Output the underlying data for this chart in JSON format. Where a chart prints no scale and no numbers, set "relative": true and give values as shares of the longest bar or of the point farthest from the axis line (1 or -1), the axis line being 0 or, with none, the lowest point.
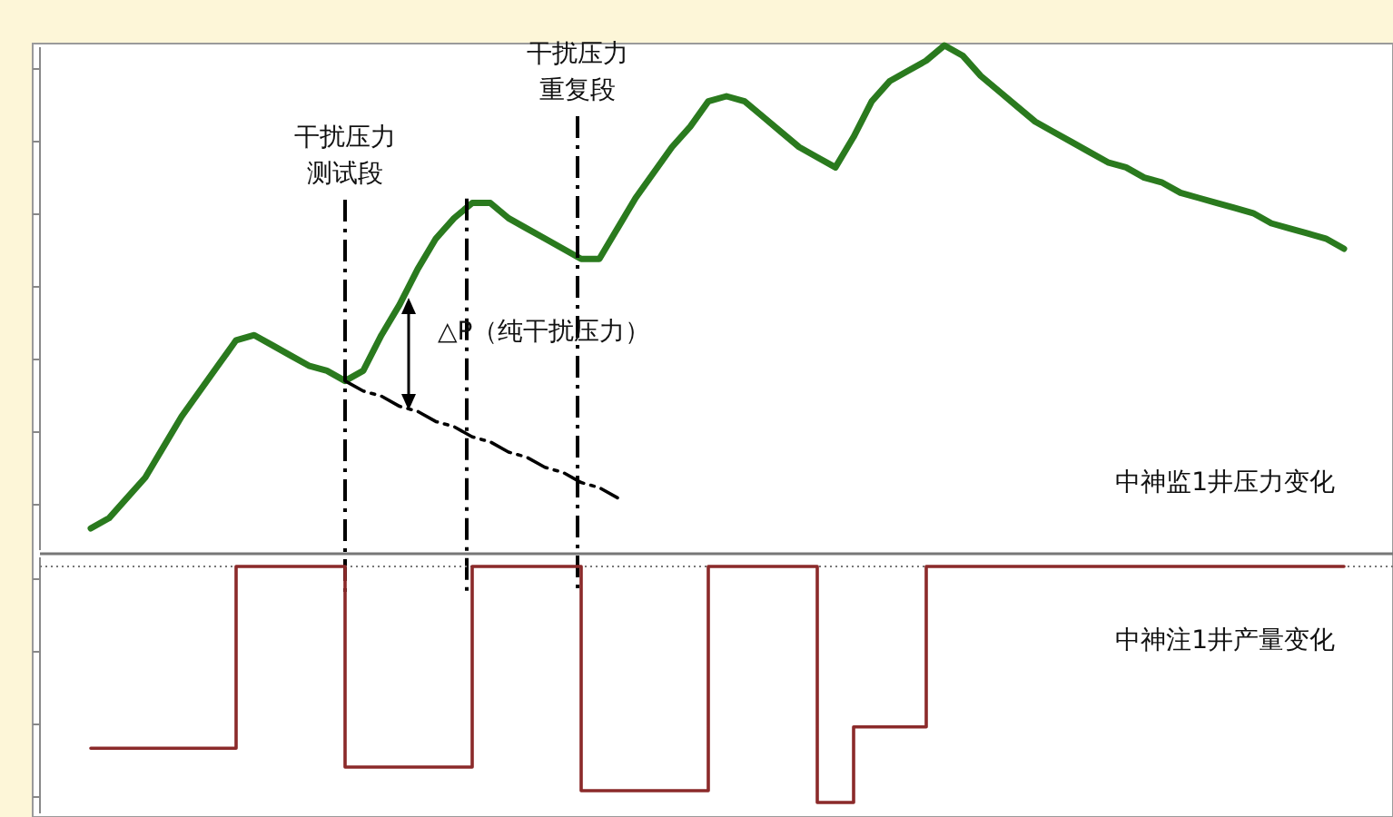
{
  "chart_data": [
    {
      "type": "line",
      "relative": true,
      "categories": [
        null,
        null,
        null,
        null,
        null,
        null,
        null,
        null,
        null,
        null,
        null,
        null,
        null,
        null,
        null,
        null,
        null,
        null,
        null,
        null,
        null,
        null,
        null,
        null,
        null,
        null,
        null,
        null,
        null,
        null,
        null,
        null,
        null,
        null,
        null,
        null,
        null,
        null,
        null,
        null,
        null,
        null,
        null,
        null,
        null,
        null,
        null,
        null,
        null,
        null,
        null,
        null,
        null,
        null,
        null,
        null,
        null,
        null,
        null,
        null,
        null,
        null,
        null,
        null,
        null,
        null,
        null,
        null,
        null,
        null
      ],
      "series": [
        {
          "color": "#2a7a1e",
          "values": [
            0.05,
            0.07,
            0.11,
            0.15,
            0.21,
            0.27,
            0.32,
            0.37,
            0.42,
            0.43,
            0.41,
            0.39,
            0.37,
            0.36,
            0.34,
            0.36,
            0.43,
            0.49,
            0.56,
            0.62,
            0.66,
            0.69,
            0.69,
            0.66,
            0.64,
            0.62,
            0.6,
            0.58,
            0.58,
            0.64,
            0.7,
            0.75,
            0.8,
            0.84,
            0.89,
            0.9,
            0.89,
            0.86,
            0.83,
            0.8,
            0.78,
            0.76,
            0.82,
            0.89,
            0.93,
            0.95,
            0.97,
            1,
            0.98,
            0.94,
            0.91,
            0.88,
            0.85,
            0.83,
            0.81,
            0.79,
            0.77,
            0.76,
            0.74,
            0.73,
            0.71,
            0.7,
            0.69,
            0.68,
            0.67,
            0.65,
            0.64,
            0.63,
            0.62,
            0.6
          ]
        },
        {
          "type": "line",
          "color": "#000000",
          "line_style": "dashed",
          "values": [
            null,
            null,
            null,
            null,
            null,
            null,
            null,
            null,
            null,
            null,
            null,
            null,
            null,
            null,
            0.34,
            0.32,
            0.31,
            0.29,
            0.28,
            0.26,
            0.25,
            0.23,
            0.22,
            0.2,
            0.19,
            0.17,
            0.16,
            0.14,
            0.13,
            0.11,
            null,
            null,
            null,
            null,
            null,
            null,
            null,
            null,
            null,
            null,
            null,
            null,
            null,
            null,
            null,
            null,
            null,
            null,
            null,
            null,
            null,
            null,
            null,
            null,
            null,
            null,
            null,
            null,
            null,
            null,
            null,
            null,
            null,
            null,
            null,
            null,
            null,
            null,
            null,
            null
          ]
        }
      ],
      "annotations": [
        "△P（纯干扰压力）",
        "干扰压力测试段",
        "干扰压力重复段",
        "中神监1井压力变化"
      ]
    },
    {
      "type": "step",
      "relative": true,
      "categories": [
        null,
        null,
        null,
        null,
        null,
        null,
        null,
        null,
        null,
        null,
        null,
        null,
        null,
        null,
        null,
        null,
        null,
        null,
        null,
        null,
        null,
        null,
        null,
        null,
        null,
        null,
        null,
        null,
        null,
        null,
        null,
        null,
        null,
        null,
        null,
        null,
        null,
        null,
        null,
        null,
        null,
        null,
        null,
        null,
        null,
        null,
        null,
        null,
        null,
        null,
        null,
        null,
        null,
        null,
        null,
        null,
        null,
        null,
        null,
        null,
        null,
        null,
        null,
        null,
        null,
        null,
        null,
        null,
        null,
        null
      ],
      "series": [
        {
          "color": "#8b2a2a",
          "values": [
            -0.77,
            -0.77,
            -0.77,
            -0.77,
            -0.77,
            -0.77,
            -0.77,
            -0.77,
            0,
            0,
            0,
            0,
            0,
            0,
            -0.85,
            -0.85,
            -0.85,
            -0.85,
            -0.85,
            -0.85,
            -0.85,
            0,
            0,
            0,
            0,
            0,
            0,
            -0.95,
            -0.95,
            -0.95,
            -0.95,
            -0.95,
            -0.95,
            -0.95,
            0,
            0,
            0,
            0,
            0,
            0,
            -1,
            -1,
            -0.68,
            -0.68,
            -0.68,
            -0.68,
            0,
            0,
            0,
            0,
            0,
            0,
            0,
            0,
            0,
            0,
            0,
            0,
            0,
            0,
            0,
            0,
            0,
            0,
            0,
            0,
            0,
            0,
            0,
            0
          ]
        }
      ],
      "annotations": [
        "中神注1井产量变化"
      ]
    }
  ]
}
